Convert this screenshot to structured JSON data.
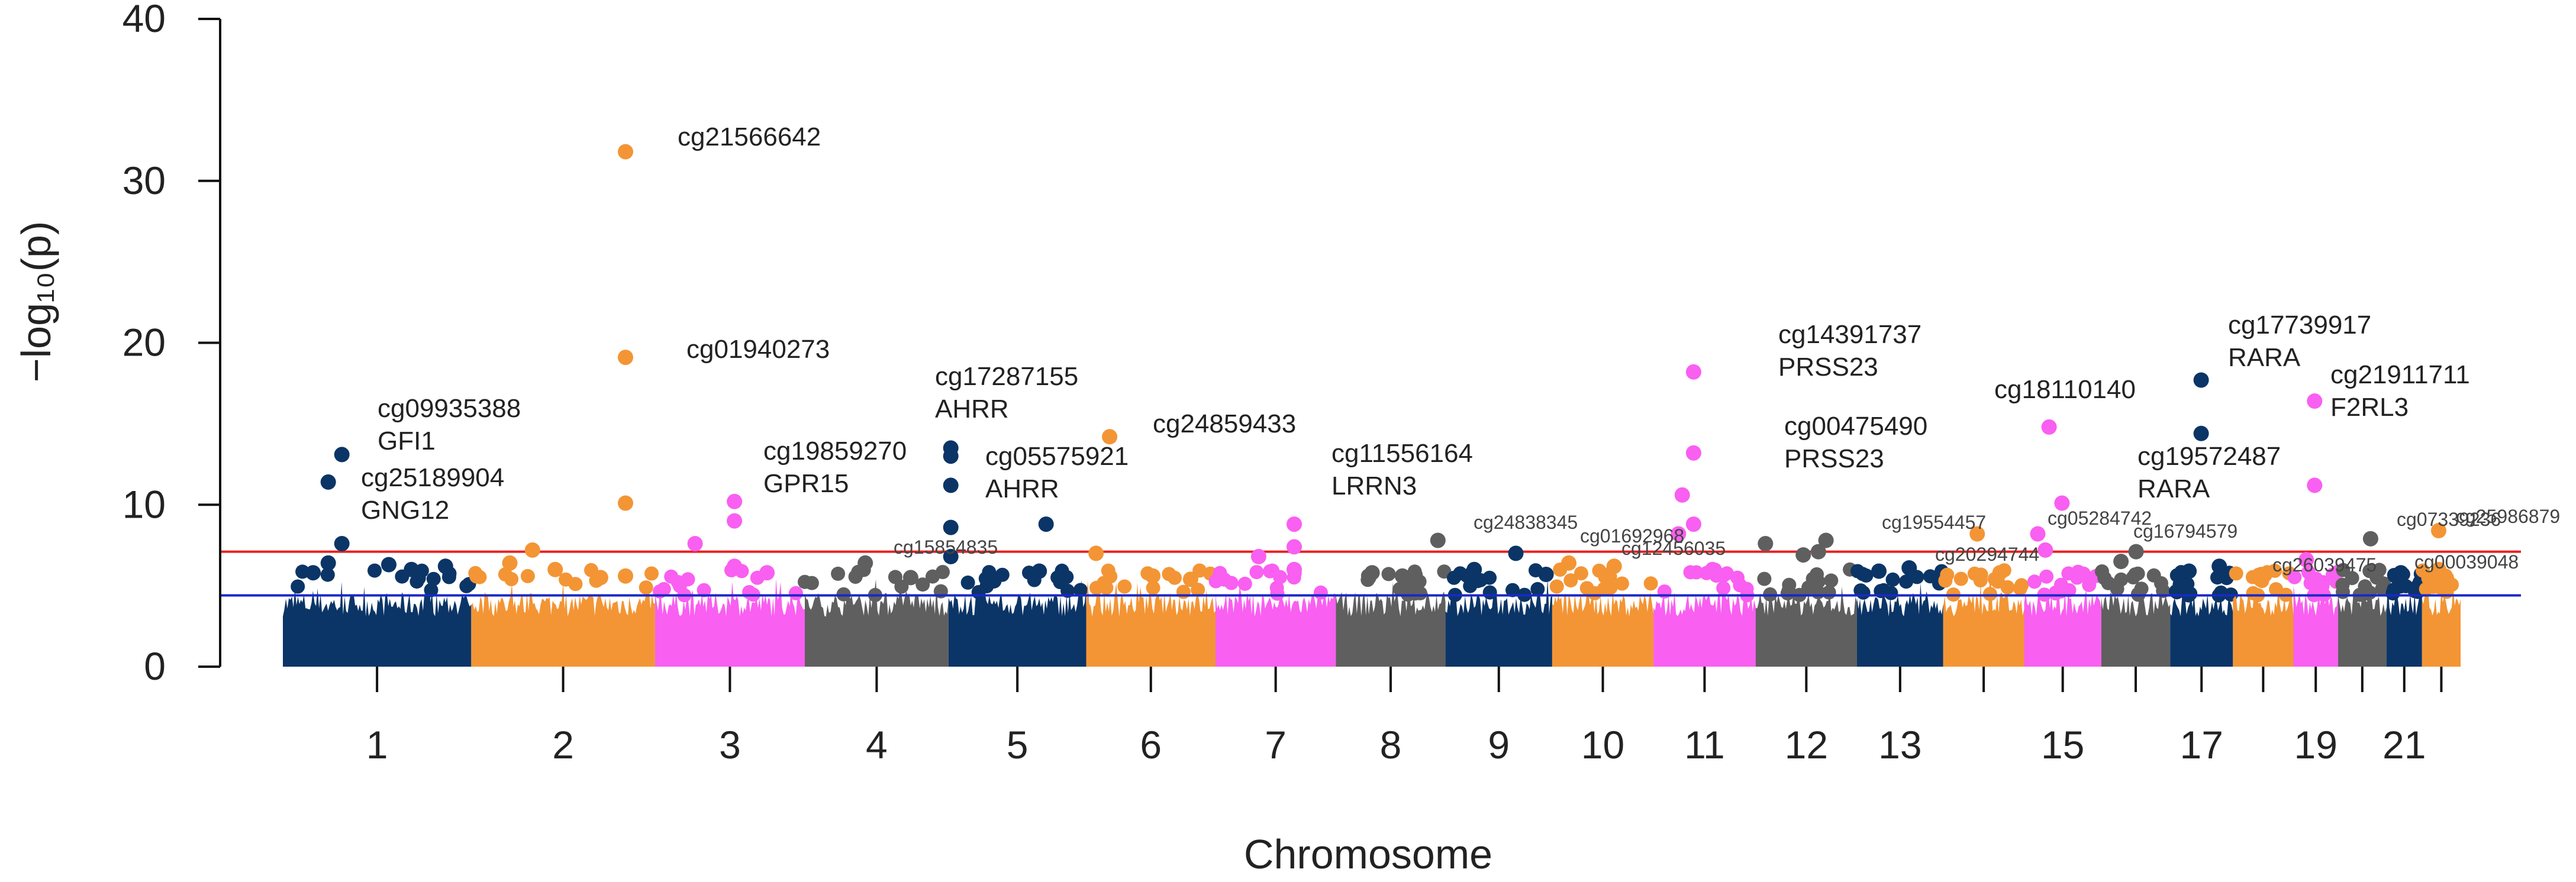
{
  "chart_data": {
    "type": "scatter",
    "subtype": "manhattan",
    "title": "",
    "xlabel": "Chromosome",
    "ylabel": "−log₁₀(p)",
    "ylim": [
      0,
      40
    ],
    "yticks": [
      "0",
      "10",
      "20",
      "30",
      "40"
    ],
    "x_unit": "cumulative genomic position (Mb)",
    "chromosomes": [
      {
        "chr": 1,
        "start": 0,
        "end": 249,
        "label": "1",
        "color": "#0b3566"
      },
      {
        "chr": 2,
        "start": 249,
        "end": 492,
        "label": "2",
        "color": "#f39535"
      },
      {
        "chr": 3,
        "start": 492,
        "end": 690,
        "label": "3",
        "color": "#f95ff0"
      },
      {
        "chr": 4,
        "start": 690,
        "end": 880,
        "label": "4",
        "color": "#5f5f5f"
      },
      {
        "chr": 5,
        "start": 880,
        "end": 1062,
        "label": "5",
        "color": "#0b3566"
      },
      {
        "chr": 6,
        "start": 1062,
        "end": 1233,
        "label": "6",
        "color": "#f39535"
      },
      {
        "chr": 7,
        "start": 1233,
        "end": 1392,
        "label": "7",
        "color": "#f95ff0"
      },
      {
        "chr": 8,
        "start": 1392,
        "end": 1537,
        "label": "8",
        "color": "#5f5f5f"
      },
      {
        "chr": 9,
        "start": 1537,
        "end": 1678,
        "label": "9",
        "color": "#0b3566"
      },
      {
        "chr": 10,
        "start": 1678,
        "end": 1812,
        "label": "10",
        "color": "#f39535"
      },
      {
        "chr": 11,
        "start": 1812,
        "end": 1947,
        "label": "11",
        "color": "#f95ff0"
      },
      {
        "chr": 12,
        "start": 1947,
        "end": 2081,
        "label": "12",
        "color": "#5f5f5f"
      },
      {
        "chr": 13,
        "start": 2081,
        "end": 2195,
        "label": "13",
        "color": "#0b3566"
      },
      {
        "chr": 14,
        "start": 2195,
        "end": 2302,
        "label": "",
        "color": "#f39535"
      },
      {
        "chr": 15,
        "start": 2302,
        "end": 2404,
        "label": "15",
        "color": "#f95ff0"
      },
      {
        "chr": 16,
        "start": 2404,
        "end": 2495,
        "label": "",
        "color": "#5f5f5f"
      },
      {
        "chr": 17,
        "start": 2495,
        "end": 2578,
        "label": "17",
        "color": "#0b3566"
      },
      {
        "chr": 18,
        "start": 2578,
        "end": 2658,
        "label": "",
        "color": "#f39535"
      },
      {
        "chr": 19,
        "start": 2658,
        "end": 2717,
        "label": "19",
        "color": "#f95ff0"
      },
      {
        "chr": 20,
        "start": 2717,
        "end": 2781,
        "label": "",
        "color": "#5f5f5f"
      },
      {
        "chr": 21,
        "start": 2781,
        "end": 2828,
        "label": "21",
        "color": "#0b3566"
      },
      {
        "chr": 22,
        "start": 2828,
        "end": 2879,
        "label": "",
        "color": "#f39535"
      }
    ],
    "thresholds": [
      {
        "name": "genome-wide",
        "value": 7.1,
        "color": "#e82020"
      },
      {
        "name": "suggestive",
        "value": 4.4,
        "color": "#1a28c8"
      }
    ],
    "points": [
      {
        "x": 78,
        "y": 13.1
      },
      {
        "x": 78,
        "y": 7.6
      },
      {
        "x": 60,
        "y": 11.4
      },
      {
        "x": 60,
        "y": 6.4
      },
      {
        "x": 40,
        "y": 5.8
      },
      {
        "x": 140,
        "y": 6.3
      },
      {
        "x": 170,
        "y": 6.0
      },
      {
        "x": 215,
        "y": 6.2
      },
      {
        "x": 330,
        "y": 7.2
      },
      {
        "x": 300,
        "y": 6.4
      },
      {
        "x": 360,
        "y": 6.0
      },
      {
        "x": 420,
        "y": 5.5
      },
      {
        "x": 453,
        "y": 31.8
      },
      {
        "x": 453,
        "y": 19.1
      },
      {
        "x": 453,
        "y": 10.1
      },
      {
        "x": 453,
        "y": 5.6
      },
      {
        "x": 545,
        "y": 7.6
      },
      {
        "x": 597,
        "y": 10.2
      },
      {
        "x": 597,
        "y": 9.0
      },
      {
        "x": 597,
        "y": 6.2
      },
      {
        "x": 640,
        "y": 5.8
      },
      {
        "x": 770,
        "y": 6.4
      },
      {
        "x": 830,
        "y": 5.5
      },
      {
        "x": 883,
        "y": 13.5
      },
      {
        "x": 883,
        "y": 13.0
      },
      {
        "x": 883,
        "y": 11.2
      },
      {
        "x": 883,
        "y": 8.6
      },
      {
        "x": 883,
        "y": 6.8
      },
      {
        "x": 1009,
        "y": 8.8
      },
      {
        "x": 1000,
        "y": 5.9
      },
      {
        "x": 940,
        "y": 5.3
      },
      {
        "x": 1075,
        "y": 7.0
      },
      {
        "x": 1093,
        "y": 14.2
      },
      {
        "x": 1150,
        "y": 5.6
      },
      {
        "x": 1200,
        "y": 5.4
      },
      {
        "x": 1290,
        "y": 6.8
      },
      {
        "x": 1337,
        "y": 8.8
      },
      {
        "x": 1337,
        "y": 7.4
      },
      {
        "x": 1337,
        "y": 6.0
      },
      {
        "x": 1440,
        "y": 5.8
      },
      {
        "x": 1480,
        "y": 5.6
      },
      {
        "x": 1527,
        "y": 7.8
      },
      {
        "x": 1575,
        "y": 6.0
      },
      {
        "x": 1630,
        "y": 7.0
      },
      {
        "x": 1670,
        "y": 5.7
      },
      {
        "x": 1700,
        "y": 6.4
      },
      {
        "x": 1760,
        "y": 6.2
      },
      {
        "x": 1850,
        "y": 10.6
      },
      {
        "x": 1865,
        "y": 18.2
      },
      {
        "x": 1865,
        "y": 13.2
      },
      {
        "x": 1865,
        "y": 8.8
      },
      {
        "x": 1845,
        "y": 8.2
      },
      {
        "x": 1890,
        "y": 6.0
      },
      {
        "x": 1960,
        "y": 7.6
      },
      {
        "x": 2040,
        "y": 7.8
      },
      {
        "x": 2030,
        "y": 7.1
      },
      {
        "x": 2010,
        "y": 6.9
      },
      {
        "x": 2110,
        "y": 5.9
      },
      {
        "x": 2150,
        "y": 6.1
      },
      {
        "x": 2240,
        "y": 8.2
      },
      {
        "x": 2270,
        "y": 5.8
      },
      {
        "x": 2335,
        "y": 14.8
      },
      {
        "x": 2352,
        "y": 10.1
      },
      {
        "x": 2320,
        "y": 8.2
      },
      {
        "x": 2330,
        "y": 7.2
      },
      {
        "x": 2450,
        "y": 7.1
      },
      {
        "x": 2430,
        "y": 6.5
      },
      {
        "x": 2536,
        "y": 17.7
      },
      {
        "x": 2536,
        "y": 14.4
      },
      {
        "x": 2520,
        "y": 5.9
      },
      {
        "x": 2560,
        "y": 6.2
      },
      {
        "x": 2686,
        "y": 16.4
      },
      {
        "x": 2686,
        "y": 11.2
      },
      {
        "x": 2675,
        "y": 6.6
      },
      {
        "x": 2760,
        "y": 7.9
      },
      {
        "x": 2800,
        "y": 5.8
      },
      {
        "x": 2850,
        "y": 8.4
      },
      {
        "x": 2850,
        "y": 6.0
      }
    ],
    "annotations": [
      {
        "name": "cg21566642",
        "gene": "",
        "size": "large"
      },
      {
        "name": "cg01940273",
        "gene": "",
        "size": "large"
      },
      {
        "name": "cg09935388",
        "gene": "GFI1",
        "size": "large"
      },
      {
        "name": "cg25189904",
        "gene": "GNG12",
        "size": "large"
      },
      {
        "name": "cg19859270",
        "gene": "GPR15",
        "size": "large"
      },
      {
        "name": "cg17287155",
        "gene": "AHRR",
        "size": "large"
      },
      {
        "name": "cg05575921",
        "gene": "AHRR",
        "size": "large"
      },
      {
        "name": "cg24859433",
        "gene": "",
        "size": "large"
      },
      {
        "name": "cg11556164",
        "gene": "LRRN3",
        "size": "large"
      },
      {
        "name": "cg14391737",
        "gene": "PRSS23",
        "size": "large"
      },
      {
        "name": "cg00475490",
        "gene": "PRSS23",
        "size": "large"
      },
      {
        "name": "cg18110140",
        "gene": "",
        "size": "large"
      },
      {
        "name": "cg17739917",
        "gene": "RARA",
        "size": "large"
      },
      {
        "name": "cg19572487",
        "gene": "RARA",
        "size": "large"
      },
      {
        "name": "cg21911711",
        "gene": "F2RL3",
        "size": "large"
      },
      {
        "name": "cg15854835",
        "gene": "",
        "size": "small"
      },
      {
        "name": "cg24838345",
        "gene": "",
        "size": "small"
      },
      {
        "name": "cg01692968",
        "gene": "",
        "size": "small"
      },
      {
        "name": "cg12456035",
        "gene": "",
        "size": "small"
      },
      {
        "name": "cg19554457",
        "gene": "",
        "size": "small"
      },
      {
        "name": "cg20294744",
        "gene": "",
        "size": "small"
      },
      {
        "name": "cg05284742",
        "gene": "",
        "size": "small"
      },
      {
        "name": "cg16794579",
        "gene": "",
        "size": "small"
      },
      {
        "name": "cg26039475",
        "gene": "",
        "size": "small"
      },
      {
        "name": "cg07339236",
        "gene": "",
        "size": "small"
      },
      {
        "name": "cg25986879",
        "gene": "",
        "size": "small"
      },
      {
        "name": "cg00039048",
        "gene": "",
        "size": "small"
      }
    ]
  }
}
